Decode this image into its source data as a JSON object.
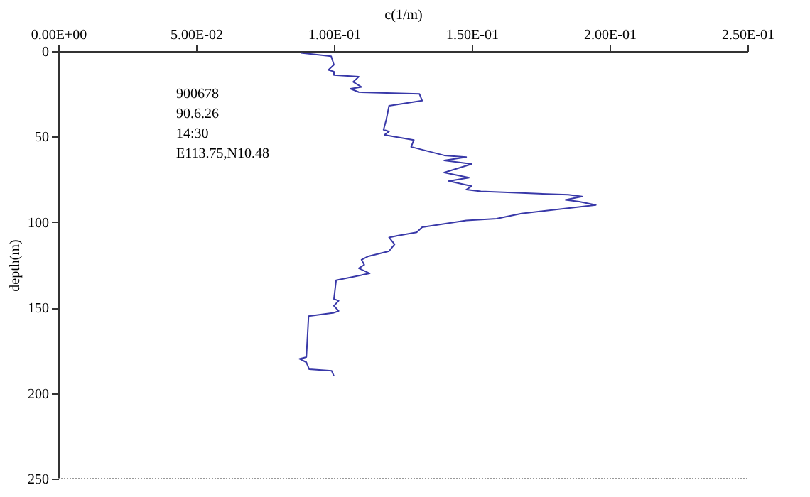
{
  "chart_data": {
    "type": "line",
    "xlabel": "c(1/m)",
    "ylabel": "depth(m)",
    "annotations": [
      "900678",
      "90.6.26",
      "14:30",
      "E113.75,N10.48"
    ],
    "x": [
      0.088,
      0.099,
      0.1,
      0.098,
      0.1,
      0.1,
      0.109,
      0.107,
      0.11,
      0.106,
      0.109,
      0.131,
      0.132,
      0.12,
      0.119,
      0.118,
      0.12,
      0.1183,
      0.129,
      0.128,
      0.14,
      0.148,
      0.14,
      0.15,
      0.14,
      0.149,
      0.1417,
      0.15,
      0.148,
      0.1533,
      0.168,
      0.185,
      0.19,
      0.184,
      0.189,
      0.195,
      0.168,
      0.159,
      0.148,
      0.132,
      0.13,
      0.123,
      0.12,
      0.122,
      0.12,
      0.1125,
      0.11,
      0.111,
      0.109,
      0.113,
      0.1008,
      0.1,
      0.1017,
      0.1,
      0.1017,
      0.1,
      0.0908,
      0.09,
      0.0875,
      0.09,
      0.091,
      0.0992,
      0.1
    ],
    "series": [
      {
        "color": "#3838a8",
        "values": [
          1,
          3,
          8,
          11,
          12,
          14,
          15,
          18,
          21,
          22,
          24,
          25,
          29,
          32,
          40,
          46,
          47,
          49,
          52,
          56,
          61,
          62,
          64,
          66,
          71,
          74,
          76,
          79,
          81,
          82,
          83,
          84,
          85,
          87,
          88,
          90,
          95,
          98,
          99,
          103,
          106,
          108,
          109,
          113,
          117,
          120,
          122,
          125,
          127,
          130,
          134,
          145,
          146,
          149,
          152,
          153,
          155,
          179,
          180,
          182,
          186,
          187,
          190
        ]
      }
    ],
    "xlim": [
      0,
      0.25
    ],
    "xticks": [
      {
        "value": 0,
        "label": "0.00E+00"
      },
      {
        "value": 0.05,
        "label": "5.00E-02"
      },
      {
        "value": 0.1,
        "label": "1.00E-01"
      },
      {
        "value": 0.15,
        "label": "1.50E-01"
      },
      {
        "value": 0.2,
        "label": "2.00E-01"
      },
      {
        "value": 0.25,
        "label": "2.50E-01"
      }
    ],
    "ylim": [
      250,
      0
    ],
    "yticks": [
      0,
      50,
      100,
      150,
      200,
      250
    ],
    "grid": false
  }
}
